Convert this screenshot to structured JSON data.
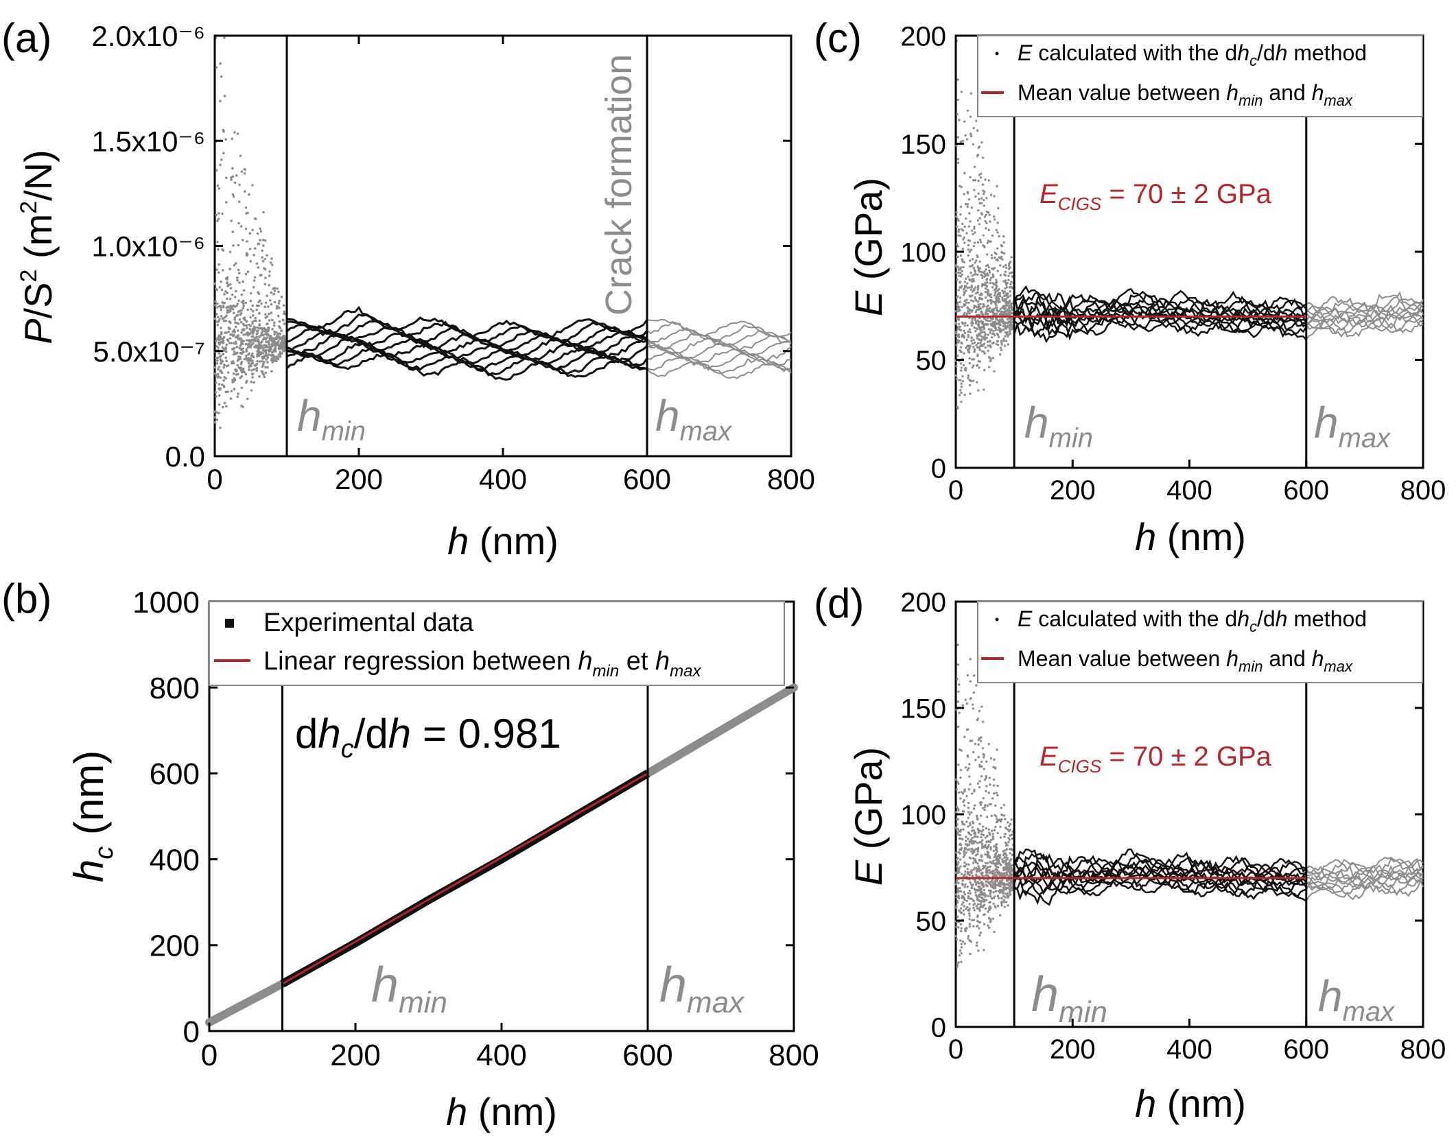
{
  "figure": "Four-panel nanoindentation analysis figure",
  "chart_data": [
    {
      "panel": "(a)",
      "type": "scatter",
      "xlabel": "h (nm)",
      "ylabel": "P/S² (m²/N)",
      "xlim": [
        0,
        800
      ],
      "ylim": [
        0,
        2e-06
      ],
      "xticks": [
        "0",
        "200",
        "400",
        "600",
        "800"
      ],
      "yticks": [
        "0.0",
        "5.0x10⁻⁷",
        "1.0x10⁻⁶",
        "1.5x10⁻⁶",
        "2.0x10⁻⁶"
      ],
      "ytick_values": [
        0,
        5e-07,
        1e-06,
        1.5e-06,
        2e-06
      ],
      "vlines": [
        100,
        600
      ],
      "annotations": [
        "h_min",
        "h_max",
        "Crack formation"
      ],
      "series": [
        {
          "name": "P/S² curves",
          "x": [
            100,
            200,
            300,
            400,
            500,
            600
          ],
          "values": [
            5.3e-07,
            5.6e-07,
            5.2e-07,
            5e-07,
            5.1e-07,
            5.3e-07
          ]
        }
      ]
    },
    {
      "panel": "(b)",
      "type": "line",
      "xlabel": "h (nm)",
      "ylabel": "h_c (nm)",
      "xlim": [
        0,
        800
      ],
      "ylim": [
        0,
        1000
      ],
      "xticks": [
        "0",
        "200",
        "400",
        "600",
        "800"
      ],
      "yticks": [
        "0",
        "200",
        "400",
        "600",
        "800",
        "1000"
      ],
      "vlines": [
        100,
        600
      ],
      "legend": [
        "Experimental data",
        "Linear regression between h_min et h_max"
      ],
      "annotation": "dh_c/dh = 0.981",
      "series": [
        {
          "name": "Experimental data",
          "x": [
            0,
            100,
            200,
            300,
            400,
            500,
            600,
            700,
            800
          ],
          "values": [
            20,
            110,
            205,
            305,
            400,
            500,
            600,
            700,
            800
          ]
        },
        {
          "name": "Linear regression",
          "x": [
            100,
            600
          ],
          "values": [
            110,
            600
          ]
        }
      ]
    },
    {
      "panel": "(c)",
      "type": "scatter",
      "xlabel": "h (nm)",
      "ylabel": "E (GPa)",
      "xlim": [
        0,
        800
      ],
      "ylim": [
        0,
        200
      ],
      "xticks": [
        "0",
        "200",
        "400",
        "600",
        "800"
      ],
      "yticks": [
        "0",
        "50",
        "100",
        "150",
        "200"
      ],
      "vlines": [
        100,
        600
      ],
      "legend": [
        "E calculated with the dh_c/dh method",
        "Mean value between h_min and h_max"
      ],
      "annotation": "E_CIGS = 70 ± 2 GPa",
      "mean": 70,
      "series": [
        {
          "name": "E",
          "x": [
            100,
            200,
            300,
            400,
            500,
            600,
            700,
            800
          ],
          "values": [
            72,
            70,
            73,
            71,
            70,
            69,
            70,
            72
          ]
        }
      ]
    },
    {
      "panel": "(d)",
      "type": "scatter",
      "xlabel": "h (nm)",
      "ylabel": "E (GPa)",
      "xlim": [
        0,
        800
      ],
      "ylim": [
        0,
        200
      ],
      "xticks": [
        "0",
        "200",
        "400",
        "600",
        "800"
      ],
      "yticks": [
        "0",
        "50",
        "100",
        "150",
        "200"
      ],
      "vlines": [
        100,
        600
      ],
      "legend": [
        "E calculated with the dh_c/dh method",
        "Mean value between h_min and h_max"
      ],
      "annotation": "E_CIGS = 70 ± 2 GPa",
      "mean": 70,
      "series": [
        {
          "name": "E",
          "x": [
            100,
            200,
            300,
            400,
            500,
            600,
            700,
            800
          ],
          "values": [
            72,
            70,
            73,
            71,
            70,
            69,
            70,
            72
          ]
        }
      ]
    }
  ],
  "colors": {
    "black": "#111111",
    "grey": "#8c8c8c",
    "red": "#b3262c",
    "mean": "#b3262c",
    "axis": "#000000"
  },
  "panels": {
    "a": {
      "label": "(a)",
      "crack": "Crack formation",
      "hmin_main": "h",
      "hmin_sub": "min",
      "hmax_main": "h",
      "hmax_sub": "max"
    },
    "b": {
      "label": "(b)",
      "legend1": "Experimental data",
      "legend2_pre": "Linear regression between ",
      "legend2_h1": "h",
      "legend2_s1": "min",
      "legend2_mid": " et ",
      "legend2_h2": "h",
      "legend2_s2": "max",
      "eq_d1": "d",
      "eq_h1": "h",
      "eq_c": "c",
      "eq_slash": "/d",
      "eq_h2": "h",
      "eq_val": " = 0.981",
      "hmin_main": "h",
      "hmin_sub": "min",
      "hmax_main": "h",
      "hmax_sub": "max"
    },
    "c": {
      "label": "(c)",
      "leg1_e": "E",
      "leg1_pre": " calculated with the d",
      "leg1_h": "h",
      "leg1_c": "c",
      "leg1_post": "/d",
      "leg1_h2": "h",
      "leg1_end": " method",
      "leg2_pre": "Mean value between ",
      "leg2_h1": "h",
      "leg2_s1": "min",
      "leg2_mid": " and ",
      "leg2_h2": "h",
      "leg2_s2": "max",
      "ann_e": "E",
      "ann_sub": "CIGS",
      "ann_val": " = 70 ± 2 GPa",
      "hmin_main": "h",
      "hmin_sub": "min",
      "hmax_main": "h",
      "hmax_sub": "max"
    },
    "d": {
      "label": "(d)",
      "leg1_e": "E",
      "leg1_pre": " calculated with the d",
      "leg1_h": "h",
      "leg1_c": "c",
      "leg1_post": "/d",
      "leg1_h2": "h",
      "leg1_end": " method",
      "leg2_pre": "Mean value between ",
      "leg2_h1": "h",
      "leg2_s1": "min",
      "leg2_mid": " and ",
      "leg2_h2": "h",
      "leg2_s2": "max",
      "ann_e": "E",
      "ann_sub": "CIGS",
      "ann_val": " = 70 ± 2 GPa",
      "hmin_main": "h",
      "hmin_sub": "min",
      "hmax_main": "h",
      "hmax_sub": "max"
    }
  },
  "axes": {
    "xlab_h": "h",
    "xlab_nm": " (nm)",
    "a_ylab_p": "P",
    "a_ylab_s": "/S",
    "a_ylab_sup": "2",
    "a_ylab_unit": " (m",
    "a_ylab_unit_sup": "2",
    "a_ylab_end": "/N)",
    "b_ylab_h": "h",
    "b_ylab_c": "c",
    "b_ylab_unit": " (nm)",
    "cd_ylab_e": "E",
    "cd_ylab_unit": " (GPa)"
  }
}
